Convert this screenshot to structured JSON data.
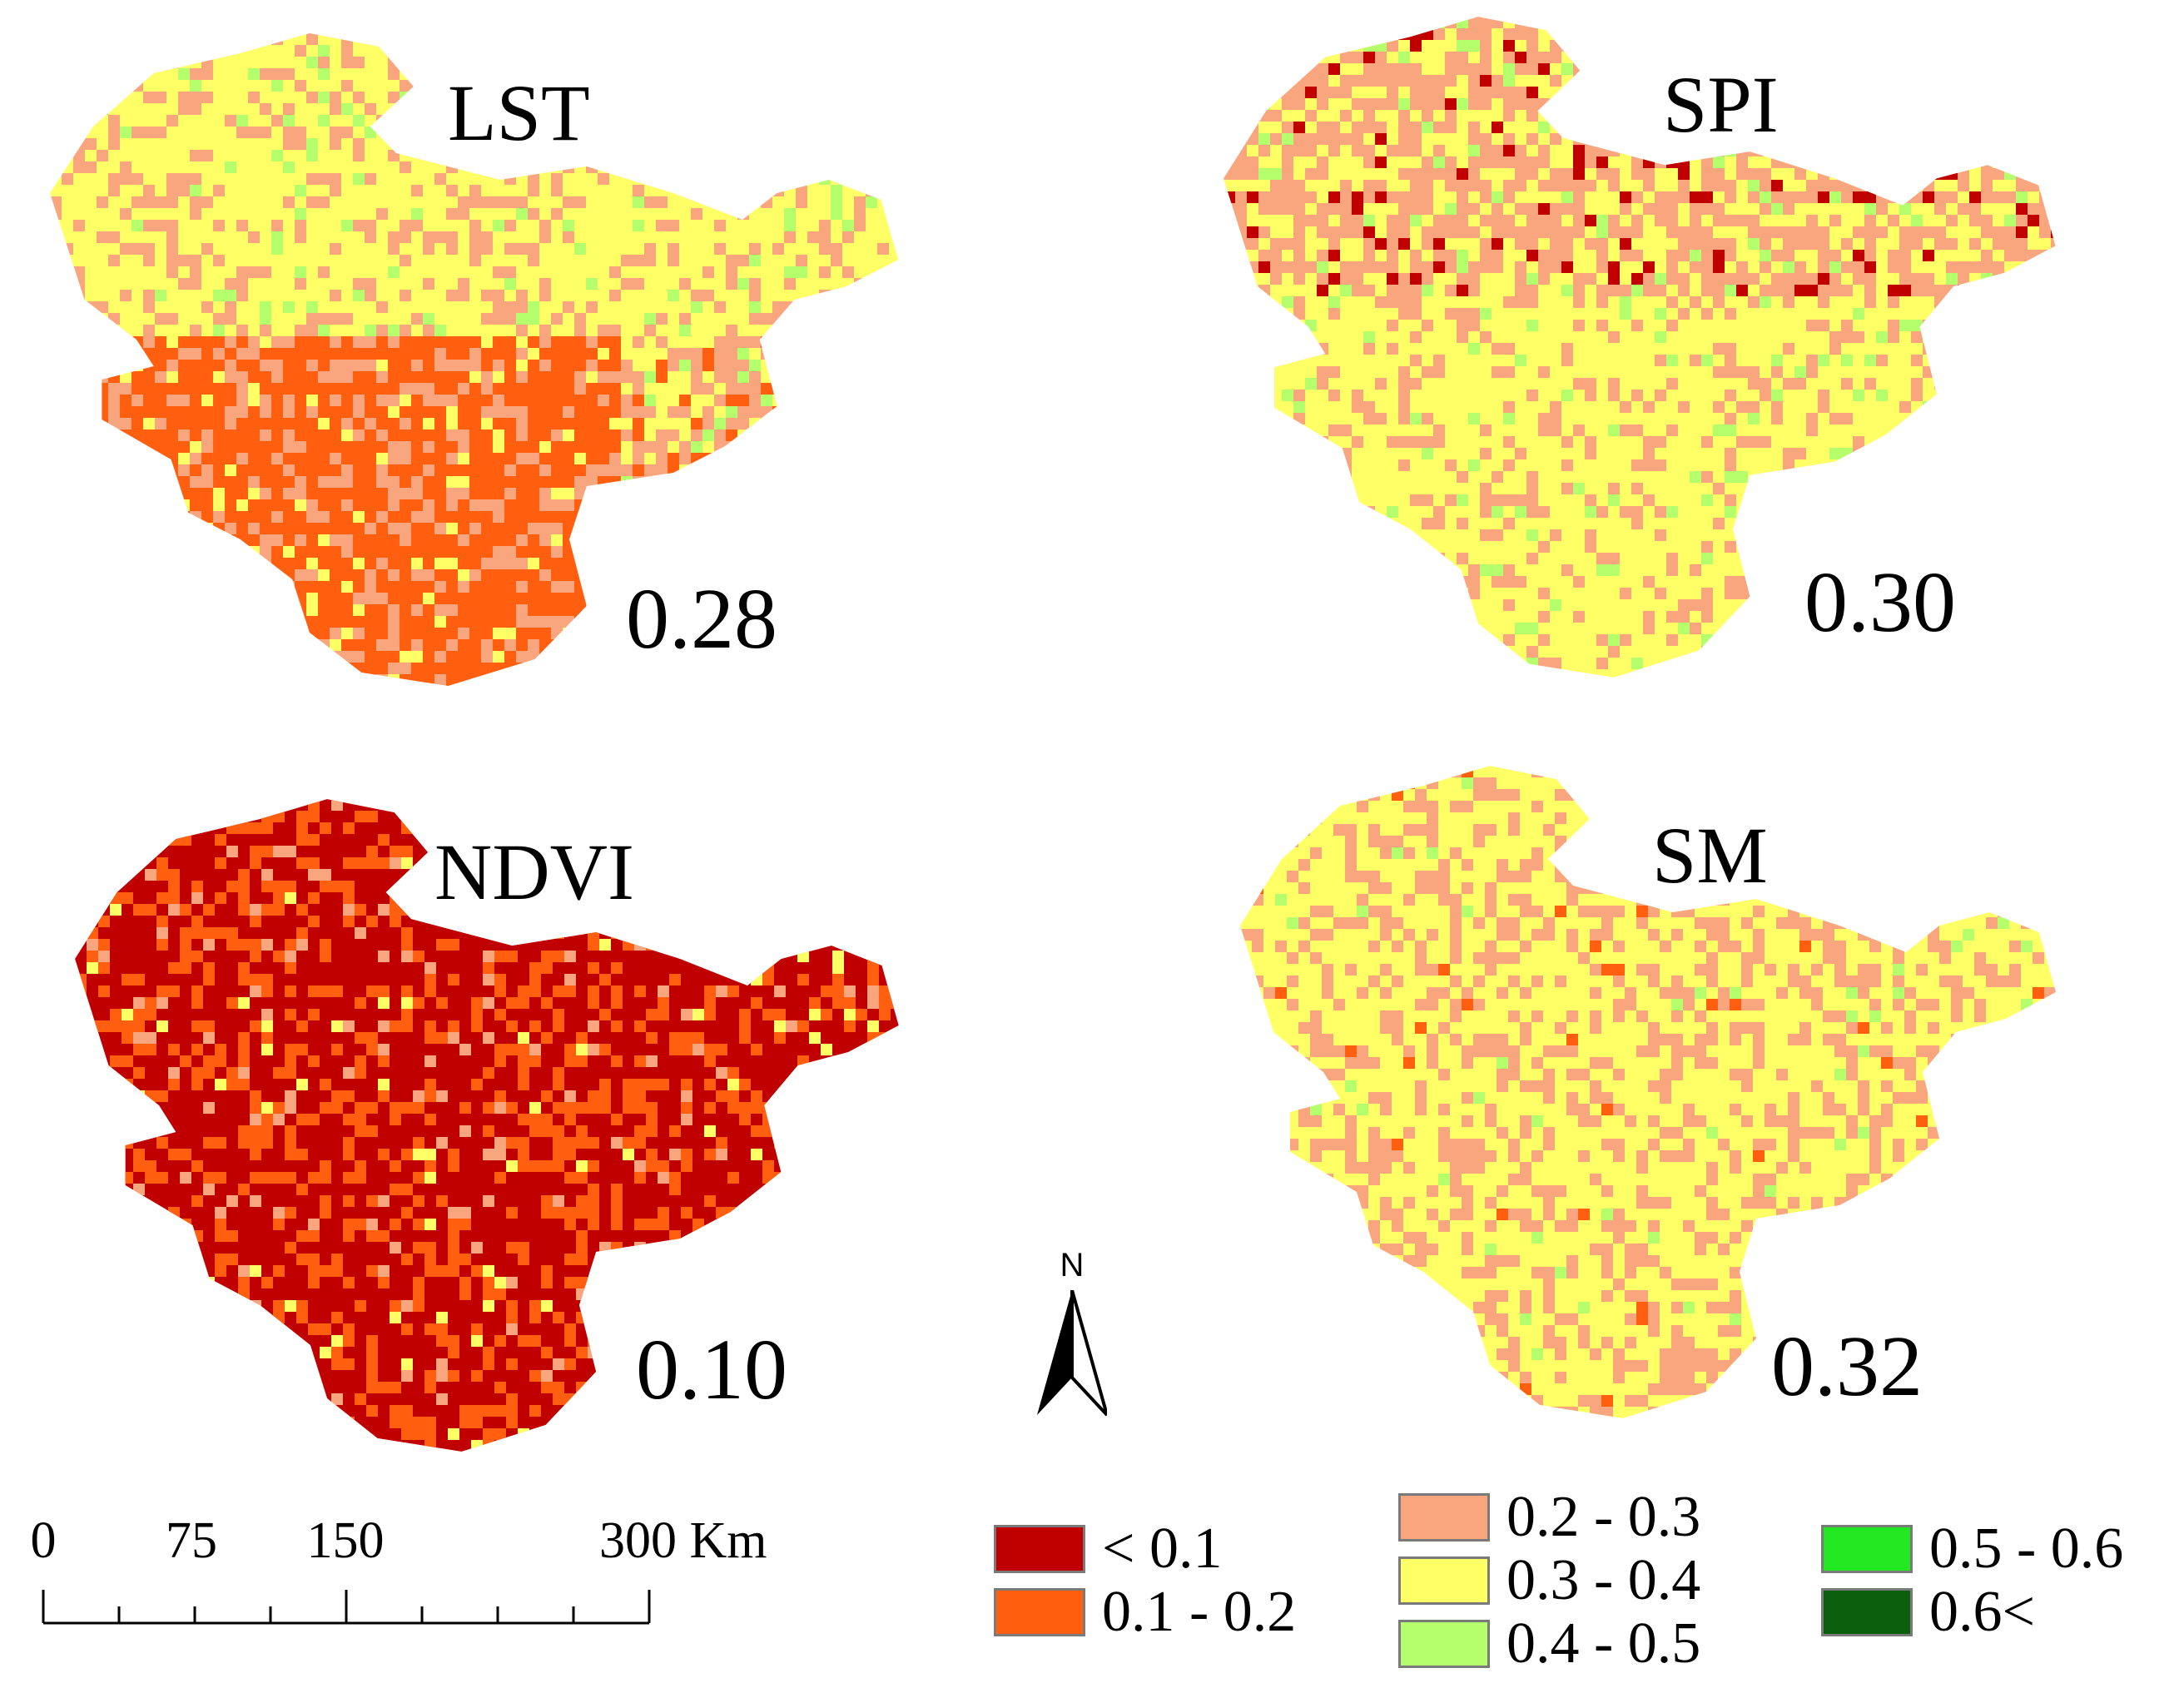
{
  "maps": [
    {
      "id": "lst",
      "title": "LST",
      "value": "0.28",
      "classes": {
        "c1": "0.2 - 0.3",
        "c2": "0.3 - 0.4",
        "c3": "0.1 - 0.2",
        "c4": "0.4 - 0.5"
      }
    },
    {
      "id": "spi",
      "title": "SPI",
      "value": "0.30",
      "classes": {
        "c1": "0.2 - 0.3",
        "c2": "0.3 - 0.4",
        "c3": "< 0.1",
        "c4": "0.4 - 0.5"
      }
    },
    {
      "id": "ndvi",
      "title": "NDVI",
      "value": "0.10",
      "classes": {
        "c1": "< 0.1",
        "c2": "0.1 - 0.2",
        "c3": "0.2 - 0.3",
        "c4": "0.3 - 0.4"
      }
    },
    {
      "id": "sm",
      "title": "SM",
      "value": "0.32",
      "classes": {
        "c1": "0.3 - 0.4",
        "c2": "0.2 - 0.3",
        "c3": "0.1 - 0.2",
        "c4": "0.4 - 0.5"
      }
    }
  ],
  "north_arrow": {
    "label": "N"
  },
  "scale_bar": {
    "ticks": [
      "0",
      "75",
      "150",
      "300"
    ],
    "unit": "Km"
  },
  "legend": {
    "items": [
      {
        "label": "< 0.1",
        "color": "#c00000"
      },
      {
        "label": "0.1 - 0.2",
        "color": "#ff5f0f"
      },
      {
        "label": "0.2 - 0.3",
        "color": "#f9a67e"
      },
      {
        "label": "0.3 - 0.4",
        "color": "#ffff66"
      },
      {
        "label": "0.4 - 0.5",
        "color": "#b6ff6c"
      },
      {
        "label": "0.5 - 0.6",
        "color": "#22e822"
      },
      {
        "label": "0.6<",
        "color": "#0b5e0b"
      }
    ]
  }
}
